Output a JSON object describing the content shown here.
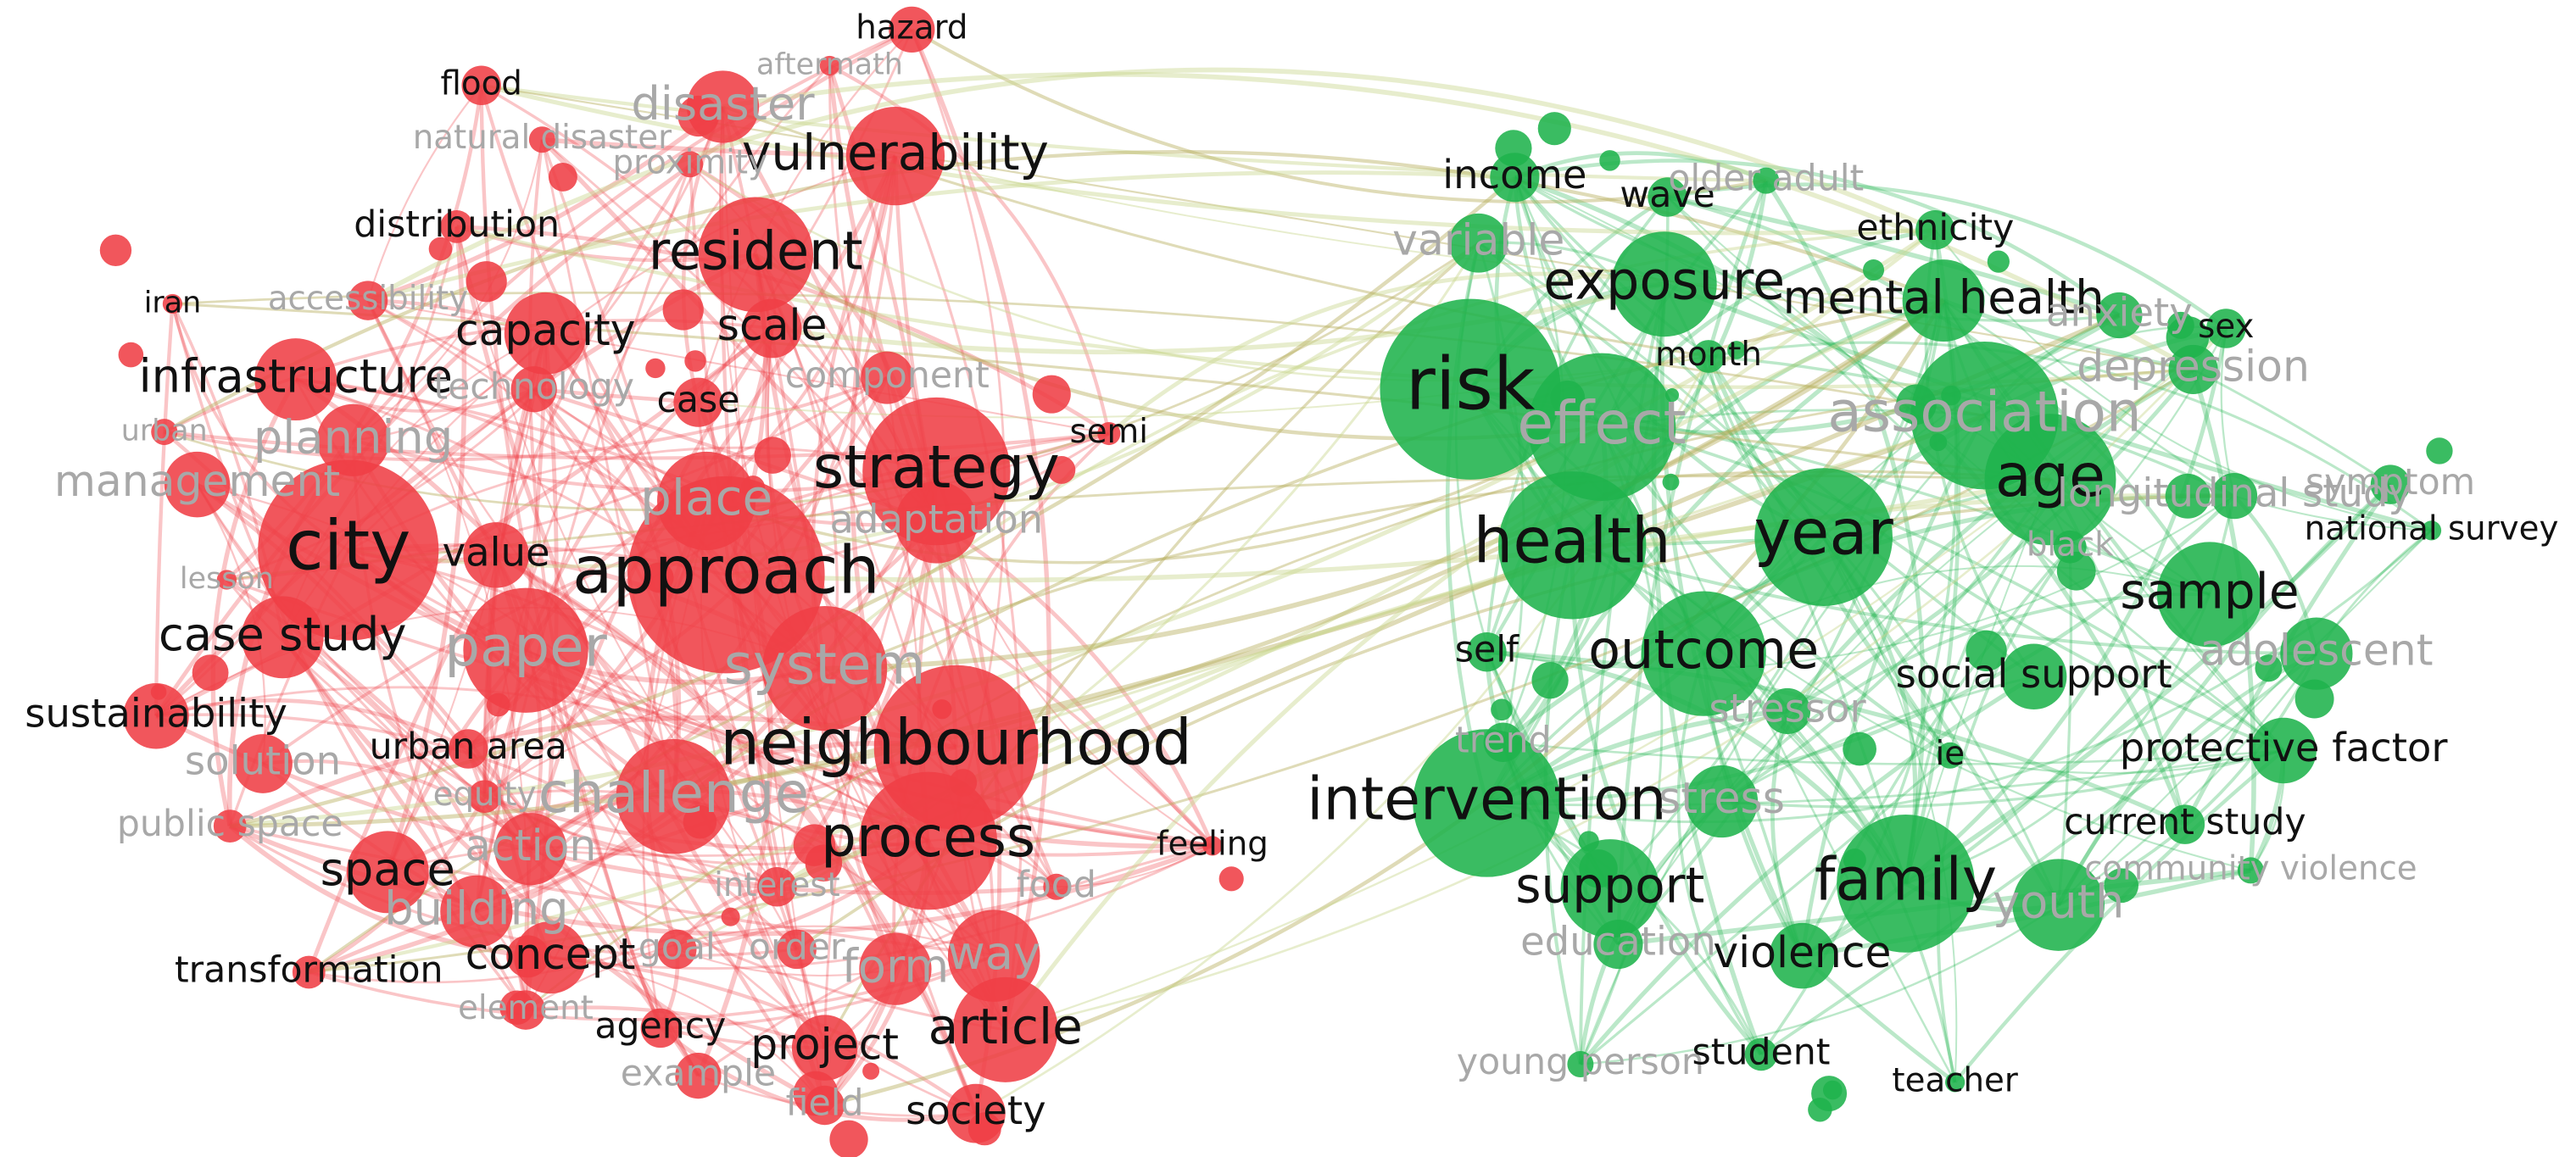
{
  "clusters": [
    {
      "color": "#ef3f45"
    },
    {
      "color": "#1fb34c"
    }
  ],
  "nodes": [
    {
      "label": "hazard",
      "cluster": 0
    },
    {
      "label": "flood",
      "cluster": 0
    },
    {
      "label": "vulnerability",
      "cluster": 0
    },
    {
      "label": "distribution",
      "cluster": 0
    },
    {
      "label": "resident",
      "cluster": 0
    },
    {
      "label": "iran",
      "cluster": 0
    },
    {
      "label": "capacity",
      "cluster": 0
    },
    {
      "label": "scale",
      "cluster": 0
    },
    {
      "label": "infrastructure",
      "cluster": 0
    },
    {
      "label": "case",
      "cluster": 0
    },
    {
      "label": "strategy",
      "cluster": 0
    },
    {
      "label": "semi",
      "cluster": 0
    },
    {
      "label": "planning",
      "cluster": 0
    },
    {
      "label": "city",
      "cluster": 0
    },
    {
      "label": "value",
      "cluster": 0
    },
    {
      "label": "approach",
      "cluster": 0
    },
    {
      "label": "case study",
      "cluster": 0
    },
    {
      "label": "paper",
      "cluster": 0
    },
    {
      "label": "system",
      "cluster": 0
    },
    {
      "label": "sustainability",
      "cluster": 0
    },
    {
      "label": "neighbourhood",
      "cluster": 0
    },
    {
      "label": "urban area",
      "cluster": 0
    },
    {
      "label": "challenge",
      "cluster": 0
    },
    {
      "label": "process",
      "cluster": 0
    },
    {
      "label": "space",
      "cluster": 0
    },
    {
      "label": "action",
      "cluster": 0
    },
    {
      "label": "concept",
      "cluster": 0
    },
    {
      "label": "goal",
      "cluster": 0
    },
    {
      "label": "transformation",
      "cluster": 0
    },
    {
      "label": "way",
      "cluster": 0
    },
    {
      "label": "form",
      "cluster": 0
    },
    {
      "label": "agency",
      "cluster": 0
    },
    {
      "label": "project",
      "cluster": 0
    },
    {
      "label": "article",
      "cluster": 0
    },
    {
      "label": "field",
      "cluster": 0
    },
    {
      "label": "society",
      "cluster": 0
    },
    {
      "label": "feeling",
      "cluster": 0
    },
    {
      "label": "disaster",
      "cluster": 0
    },
    {
      "label": "aftermath",
      "cluster": 0
    },
    {
      "label": "natural disaster",
      "cluster": 0
    },
    {
      "label": "proximity",
      "cluster": 0
    },
    {
      "label": "accessibility",
      "cluster": 0
    },
    {
      "label": "technology",
      "cluster": 0
    },
    {
      "label": "component",
      "cluster": 0
    },
    {
      "label": "urban",
      "cluster": 0
    },
    {
      "label": "management",
      "cluster": 0
    },
    {
      "label": "place",
      "cluster": 0
    },
    {
      "label": "adaptation",
      "cluster": 0
    },
    {
      "label": "lesson",
      "cluster": 0
    },
    {
      "label": "solution",
      "cluster": 0
    },
    {
      "label": "equity",
      "cluster": 0
    },
    {
      "label": "public space",
      "cluster": 0
    },
    {
      "label": "interest",
      "cluster": 0
    },
    {
      "label": "food",
      "cluster": 0
    },
    {
      "label": "building",
      "cluster": 0
    },
    {
      "label": "element",
      "cluster": 0
    },
    {
      "label": "example",
      "cluster": 0
    },
    {
      "label": "order",
      "cluster": 0
    },
    {
      "label": "income",
      "cluster": 1
    },
    {
      "label": "wave",
      "cluster": 1
    },
    {
      "label": "older adult",
      "cluster": 1
    },
    {
      "label": "ethnicity",
      "cluster": 1
    },
    {
      "label": "variable",
      "cluster": 1
    },
    {
      "label": "exposure",
      "cluster": 1
    },
    {
      "label": "mental health",
      "cluster": 1
    },
    {
      "label": "anxiety",
      "cluster": 1
    },
    {
      "label": "sex",
      "cluster": 1
    },
    {
      "label": "month",
      "cluster": 1
    },
    {
      "label": "risk",
      "cluster": 1
    },
    {
      "label": "effect",
      "cluster": 1
    },
    {
      "label": "association",
      "cluster": 1
    },
    {
      "label": "depression",
      "cluster": 1
    },
    {
      "label": "age",
      "cluster": 1
    },
    {
      "label": "longitudinal study",
      "cluster": 1
    },
    {
      "label": "symptom",
      "cluster": 1
    },
    {
      "label": "national survey",
      "cluster": 1
    },
    {
      "label": "health",
      "cluster": 1
    },
    {
      "label": "year",
      "cluster": 1
    },
    {
      "label": "black",
      "cluster": 1
    },
    {
      "label": "sample",
      "cluster": 1
    },
    {
      "label": "self",
      "cluster": 1
    },
    {
      "label": "outcome",
      "cluster": 1
    },
    {
      "label": "adolescent",
      "cluster": 1
    },
    {
      "label": "social support",
      "cluster": 1
    },
    {
      "label": "stressor",
      "cluster": 1
    },
    {
      "label": "trend",
      "cluster": 1
    },
    {
      "label": "ie",
      "cluster": 1
    },
    {
      "label": "protective factor",
      "cluster": 1
    },
    {
      "label": "intervention",
      "cluster": 1
    },
    {
      "label": "stress",
      "cluster": 1
    },
    {
      "label": "current study",
      "cluster": 1
    },
    {
      "label": "community violence",
      "cluster": 1
    },
    {
      "label": "support",
      "cluster": 1
    },
    {
      "label": "family",
      "cluster": 1
    },
    {
      "label": "youth",
      "cluster": 1
    },
    {
      "label": "education",
      "cluster": 1
    },
    {
      "label": "violence",
      "cluster": 1
    },
    {
      "label": "young person",
      "cluster": 1
    },
    {
      "label": "student",
      "cluster": 1
    },
    {
      "label": "teacher",
      "cluster": 1
    }
  ]
}
